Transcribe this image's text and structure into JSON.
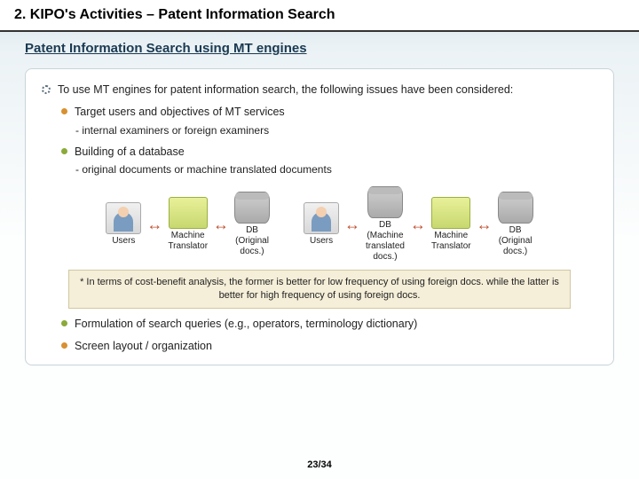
{
  "header": {
    "title": "2. KIPO's Activities – Patent Information Search"
  },
  "subtitle": "Patent Information Search using MT engines",
  "main": "To use MT engines for patent information search, the following issues have been considered:",
  "points": {
    "p1": "Target users and objectives of MT services",
    "p1d": "- internal examiners or foreign examiners",
    "p2": "Building of a database",
    "p2d": "- original documents or machine translated documents",
    "p3": "Formulation of search queries (e.g., operators, terminology dictionary)",
    "p4": "Screen layout / organization"
  },
  "diagram": {
    "users": "Users",
    "mt": "Machine\nTranslator",
    "db_orig": "DB\n(Original\ndocs.)",
    "db_trans": "DB\n(Machine\ntranslated\ndocs.)"
  },
  "note": "* In terms of cost-benefit analysis, the former is better for low frequency of using foreign docs. while the latter is better for high frequency of using foreign docs.",
  "page": "23/34"
}
